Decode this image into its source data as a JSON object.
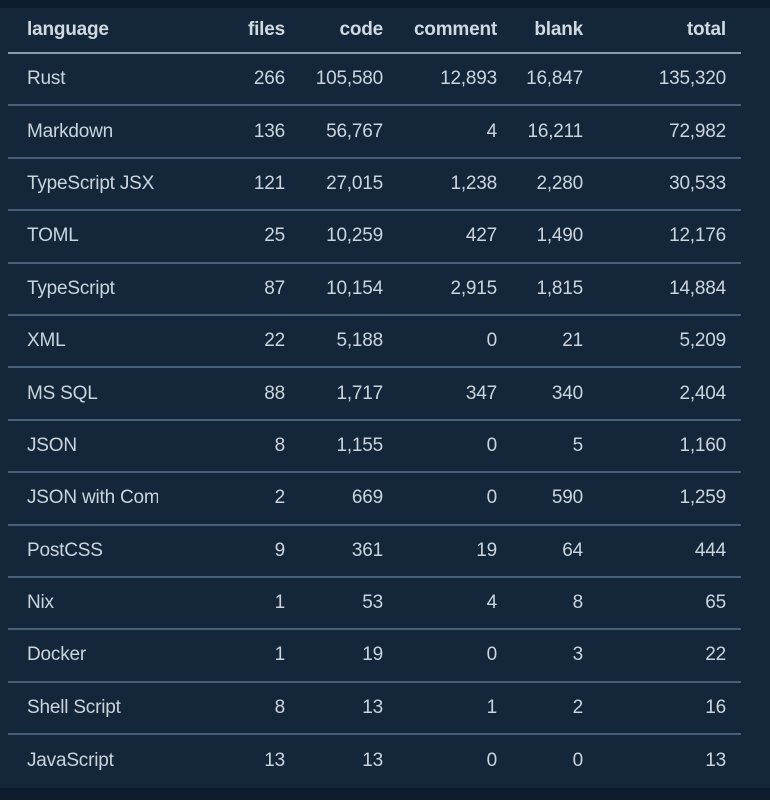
{
  "colors": {
    "page_bg": "#0c1c2d",
    "table_bg": "#14273a",
    "text": "#cbd4dc",
    "header_rule": "#8a9bac",
    "row_rule": "#46607a"
  },
  "chart_data": {
    "type": "table",
    "columns": [
      {
        "key": "language",
        "label": "language",
        "align": "left"
      },
      {
        "key": "files",
        "label": "files",
        "align": "right"
      },
      {
        "key": "code",
        "label": "code",
        "align": "right"
      },
      {
        "key": "comment",
        "label": "comment",
        "align": "right"
      },
      {
        "key": "blank",
        "label": "blank",
        "align": "right"
      },
      {
        "key": "total",
        "label": "total",
        "align": "right"
      }
    ],
    "rows": [
      {
        "language": "Rust",
        "files": "266",
        "code": "105,580",
        "comment": "12,893",
        "blank": "16,847",
        "total": "135,320"
      },
      {
        "language": "Markdown",
        "files": "136",
        "code": "56,767",
        "comment": "4",
        "blank": "16,211",
        "total": "72,982"
      },
      {
        "language": "TypeScript JSX",
        "files": "121",
        "code": "27,015",
        "comment": "1,238",
        "blank": "2,280",
        "total": "30,533"
      },
      {
        "language": "TOML",
        "files": "25",
        "code": "10,259",
        "comment": "427",
        "blank": "1,490",
        "total": "12,176"
      },
      {
        "language": "TypeScript",
        "files": "87",
        "code": "10,154",
        "comment": "2,915",
        "blank": "1,815",
        "total": "14,884"
      },
      {
        "language": "XML",
        "files": "22",
        "code": "5,188",
        "comment": "0",
        "blank": "21",
        "total": "5,209"
      },
      {
        "language": "MS SQL",
        "files": "88",
        "code": "1,717",
        "comment": "347",
        "blank": "340",
        "total": "2,404"
      },
      {
        "language": "JSON",
        "files": "8",
        "code": "1,155",
        "comment": "0",
        "blank": "5",
        "total": "1,160"
      },
      {
        "language": "JSON with Comments",
        "files": "2",
        "code": "669",
        "comment": "0",
        "blank": "590",
        "total": "1,259"
      },
      {
        "language": "PostCSS",
        "files": "9",
        "code": "361",
        "comment": "19",
        "blank": "64",
        "total": "444"
      },
      {
        "language": "Nix",
        "files": "1",
        "code": "53",
        "comment": "4",
        "blank": "8",
        "total": "65"
      },
      {
        "language": "Docker",
        "files": "1",
        "code": "19",
        "comment": "0",
        "blank": "3",
        "total": "22"
      },
      {
        "language": "Shell Script",
        "files": "8",
        "code": "13",
        "comment": "1",
        "blank": "2",
        "total": "16"
      },
      {
        "language": "JavaScript",
        "files": "13",
        "code": "13",
        "comment": "0",
        "blank": "0",
        "total": "13"
      }
    ]
  }
}
